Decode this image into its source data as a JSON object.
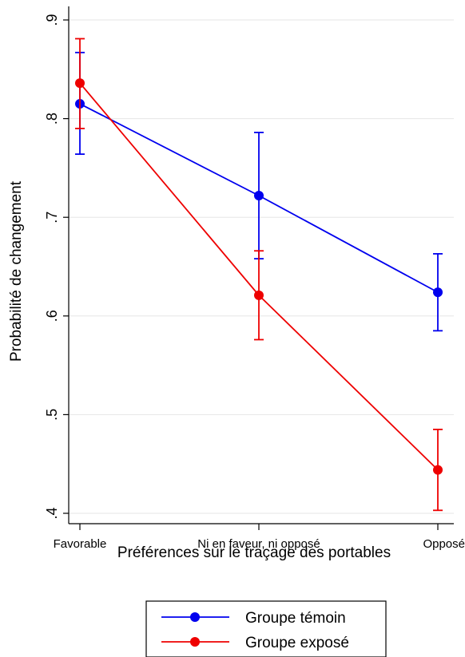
{
  "chart_data": {
    "type": "line",
    "title": "",
    "xlabel": "Préférences sur le traçage des portables",
    "ylabel": "Probabilité de changement",
    "categories": [
      "Favorable",
      "Ni en faveur, ni opposé",
      "Opposé"
    ],
    "ylim": [
      0.4,
      0.9
    ],
    "yticks": [
      0.4,
      0.5,
      0.6,
      0.7,
      0.8,
      0.9
    ],
    "ytick_labels": [
      ".4",
      ".5",
      ".6",
      ".7",
      ".8",
      ".9"
    ],
    "grid": true,
    "legend_position": "bottom-center",
    "series": [
      {
        "name": "Groupe témoin",
        "color": "#0000ee",
        "values": [
          0.815,
          0.722,
          0.624
        ],
        "ci_low": [
          0.764,
          0.658,
          0.585
        ],
        "ci_high": [
          0.867,
          0.786,
          0.663
        ]
      },
      {
        "name": "Groupe exposé",
        "color": "#ee0000",
        "values": [
          0.836,
          0.621,
          0.444
        ],
        "ci_low": [
          0.79,
          0.576,
          0.403
        ],
        "ci_high": [
          0.881,
          0.666,
          0.485
        ]
      }
    ]
  }
}
